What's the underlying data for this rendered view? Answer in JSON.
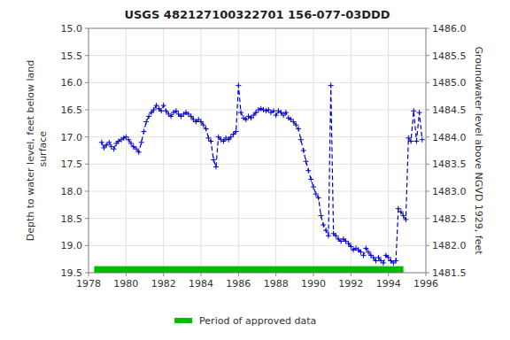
{
  "chart_data": {
    "type": "line",
    "title": "USGS 482127100322701 156-077-03DDD",
    "ylabel": "Depth to water level, feet below land\n surface",
    "y2label": "Groundwater level above NGVD 1929, feet",
    "xlim": [
      1978,
      1996
    ],
    "xticks": [
      1978,
      1980,
      1982,
      1984,
      1986,
      1988,
      1990,
      1992,
      1994,
      1996
    ],
    "ylim": [
      19.5,
      15.0
    ],
    "yticks": [
      {
        "value": 15.0,
        "label": "15.0"
      },
      {
        "value": 15.5,
        "label": "15.5"
      },
      {
        "value": 16.0,
        "label": "16.0"
      },
      {
        "value": 16.5,
        "label": "16.5"
      },
      {
        "value": 17.0,
        "label": "17.0"
      },
      {
        "value": 17.5,
        "label": "17.5"
      },
      {
        "value": 18.0,
        "label": "18.0"
      },
      {
        "value": 18.5,
        "label": "18.5"
      },
      {
        "value": 19.0,
        "label": "19.0"
      },
      {
        "value": 19.5,
        "label": "19.5"
      }
    ],
    "y2lim": [
      1481.5,
      1486.0
    ],
    "y2ticks": [
      {
        "value": 1481.5,
        "label": "1481.5"
      },
      {
        "value": 1482.0,
        "label": "1482.0"
      },
      {
        "value": 1482.5,
        "label": "1482.5"
      },
      {
        "value": 1483.0,
        "label": "1483.0"
      },
      {
        "value": 1483.5,
        "label": "1483.5"
      },
      {
        "value": 1484.0,
        "label": "1484.0"
      },
      {
        "value": 1484.5,
        "label": "1484.5"
      },
      {
        "value": 1485.0,
        "label": "1485.0"
      },
      {
        "value": 1485.5,
        "label": "1485.5"
      },
      {
        "value": 1486.0,
        "label": "1486.0"
      }
    ],
    "grid": true,
    "legend": "bottom",
    "x": [
      1978.7,
      1978.82,
      1978.95,
      1979.1,
      1979.22,
      1979.35,
      1979.48,
      1979.6,
      1979.75,
      1979.88,
      1980.0,
      1980.13,
      1980.27,
      1980.4,
      1980.55,
      1980.68,
      1980.82,
      1980.95,
      1981.08,
      1981.22,
      1981.35,
      1981.48,
      1981.62,
      1981.75,
      1981.88,
      1982.0,
      1982.13,
      1982.27,
      1982.4,
      1982.53,
      1982.67,
      1982.8,
      1982.93,
      1983.07,
      1983.2,
      1983.33,
      1983.47,
      1983.6,
      1983.73,
      1983.87,
      1984.0,
      1984.13,
      1984.27,
      1984.4,
      1984.53,
      1984.67,
      1984.8,
      1984.93,
      1985.07,
      1985.2,
      1985.33,
      1985.47,
      1985.6,
      1985.73,
      1985.87,
      1986.0,
      1986.13,
      1986.27,
      1986.4,
      1986.53,
      1986.67,
      1986.8,
      1986.93,
      1987.07,
      1987.2,
      1987.33,
      1987.47,
      1987.6,
      1987.73,
      1987.87,
      1988.0,
      1988.13,
      1988.27,
      1988.4,
      1988.53,
      1988.67,
      1988.8,
      1988.93,
      1989.07,
      1989.2,
      1989.33,
      1989.47,
      1989.6,
      1989.73,
      1989.87,
      1990.0,
      1990.13,
      1990.27,
      1990.4,
      1990.53,
      1990.67,
      1990.8,
      1990.93,
      1991.07,
      1991.2,
      1991.33,
      1991.47,
      1991.6,
      1991.73,
      1991.87,
      1992.0,
      1992.13,
      1992.27,
      1992.4,
      1992.53,
      1992.67,
      1992.8,
      1992.93,
      1993.07,
      1993.2,
      1993.33,
      1993.47,
      1993.6,
      1993.73,
      1993.87,
      1994.0,
      1994.13,
      1994.27,
      1994.4,
      1994.53,
      1994.67,
      1994.8,
      1994.93,
      1995.07,
      1995.2,
      1995.35,
      1995.5,
      1995.65,
      1995.8
    ],
    "series": [
      {
        "color": "#0000cc",
        "line_style": "dashed",
        "marker": "plus",
        "values": [
          17.1,
          17.2,
          17.15,
          17.1,
          17.18,
          17.22,
          17.12,
          17.08,
          17.05,
          17.02,
          17.0,
          17.05,
          17.12,
          17.18,
          17.22,
          17.28,
          17.1,
          16.9,
          16.72,
          16.62,
          16.55,
          16.5,
          16.42,
          16.48,
          16.52,
          16.42,
          16.52,
          16.58,
          16.62,
          16.55,
          16.52,
          16.58,
          16.62,
          16.58,
          16.55,
          16.58,
          16.62,
          16.68,
          16.72,
          16.68,
          16.72,
          16.78,
          16.85,
          17.02,
          17.08,
          17.42,
          17.55,
          17.0,
          17.05,
          17.08,
          17.02,
          17.05,
          17.0,
          16.95,
          16.9,
          16.05,
          16.55,
          16.65,
          16.68,
          16.62,
          16.65,
          16.6,
          16.55,
          16.5,
          16.48,
          16.5,
          16.52,
          16.5,
          16.55,
          16.52,
          16.6,
          16.52,
          16.55,
          16.6,
          16.55,
          16.65,
          16.68,
          16.72,
          16.78,
          16.85,
          17.05,
          17.25,
          17.45,
          17.62,
          17.78,
          17.92,
          18.05,
          18.12,
          18.45,
          18.62,
          18.72,
          18.82,
          16.05,
          18.78,
          18.82,
          18.88,
          18.92,
          18.88,
          18.92,
          18.96,
          19.02,
          19.08,
          19.05,
          19.08,
          19.12,
          19.18,
          19.05,
          19.12,
          19.18,
          19.22,
          19.28,
          19.22,
          19.28,
          19.32,
          19.18,
          19.22,
          19.28,
          19.32,
          19.28,
          18.32,
          18.38,
          18.45,
          18.52,
          17.02,
          17.08,
          16.52,
          17.08,
          16.55,
          17.05
        ]
      },
      {
        "name": "Period of approved data",
        "type": "band",
        "color": "#00bb00",
        "x_start": 1978.3,
        "x_end": 1994.8,
        "y_top": 19.38,
        "y_bottom": 19.5
      }
    ]
  }
}
